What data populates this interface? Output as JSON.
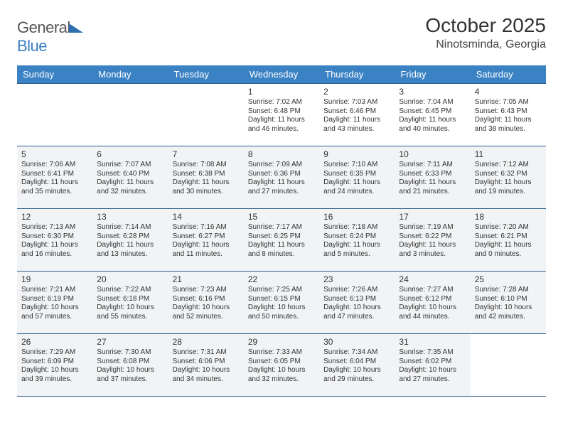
{
  "brand": {
    "part1": "General",
    "part2": "Blue"
  },
  "title": "October 2025",
  "location": "Ninotsminda, Georgia",
  "colors": {
    "header_bg": "#3b82c4",
    "border": "#2f5f8f",
    "shaded_bg": "#f1f3f5",
    "text": "#333333",
    "brand_gray": "#555555",
    "brand_blue": "#3b7fc4"
  },
  "day_headers": [
    "Sunday",
    "Monday",
    "Tuesday",
    "Wednesday",
    "Thursday",
    "Friday",
    "Saturday"
  ],
  "weeks": [
    [
      {
        "day": "",
        "sunrise": "",
        "sunset": "",
        "daylight": "",
        "shaded": false
      },
      {
        "day": "",
        "sunrise": "",
        "sunset": "",
        "daylight": "",
        "shaded": false
      },
      {
        "day": "",
        "sunrise": "",
        "sunset": "",
        "daylight": "",
        "shaded": false
      },
      {
        "day": "1",
        "sunrise": "Sunrise: 7:02 AM",
        "sunset": "Sunset: 6:48 PM",
        "daylight": "Daylight: 11 hours and 46 minutes.",
        "shaded": false
      },
      {
        "day": "2",
        "sunrise": "Sunrise: 7:03 AM",
        "sunset": "Sunset: 6:46 PM",
        "daylight": "Daylight: 11 hours and 43 minutes.",
        "shaded": false
      },
      {
        "day": "3",
        "sunrise": "Sunrise: 7:04 AM",
        "sunset": "Sunset: 6:45 PM",
        "daylight": "Daylight: 11 hours and 40 minutes.",
        "shaded": false
      },
      {
        "day": "4",
        "sunrise": "Sunrise: 7:05 AM",
        "sunset": "Sunset: 6:43 PM",
        "daylight": "Daylight: 11 hours and 38 minutes.",
        "shaded": false
      }
    ],
    [
      {
        "day": "5",
        "sunrise": "Sunrise: 7:06 AM",
        "sunset": "Sunset: 6:41 PM",
        "daylight": "Daylight: 11 hours and 35 minutes.",
        "shaded": true
      },
      {
        "day": "6",
        "sunrise": "Sunrise: 7:07 AM",
        "sunset": "Sunset: 6:40 PM",
        "daylight": "Daylight: 11 hours and 32 minutes.",
        "shaded": true
      },
      {
        "day": "7",
        "sunrise": "Sunrise: 7:08 AM",
        "sunset": "Sunset: 6:38 PM",
        "daylight": "Daylight: 11 hours and 30 minutes.",
        "shaded": true
      },
      {
        "day": "8",
        "sunrise": "Sunrise: 7:09 AM",
        "sunset": "Sunset: 6:36 PM",
        "daylight": "Daylight: 11 hours and 27 minutes.",
        "shaded": true
      },
      {
        "day": "9",
        "sunrise": "Sunrise: 7:10 AM",
        "sunset": "Sunset: 6:35 PM",
        "daylight": "Daylight: 11 hours and 24 minutes.",
        "shaded": true
      },
      {
        "day": "10",
        "sunrise": "Sunrise: 7:11 AM",
        "sunset": "Sunset: 6:33 PM",
        "daylight": "Daylight: 11 hours and 21 minutes.",
        "shaded": true
      },
      {
        "day": "11",
        "sunrise": "Sunrise: 7:12 AM",
        "sunset": "Sunset: 6:32 PM",
        "daylight": "Daylight: 11 hours and 19 minutes.",
        "shaded": true
      }
    ],
    [
      {
        "day": "12",
        "sunrise": "Sunrise: 7:13 AM",
        "sunset": "Sunset: 6:30 PM",
        "daylight": "Daylight: 11 hours and 16 minutes.",
        "shaded": true
      },
      {
        "day": "13",
        "sunrise": "Sunrise: 7:14 AM",
        "sunset": "Sunset: 6:28 PM",
        "daylight": "Daylight: 11 hours and 13 minutes.",
        "shaded": true
      },
      {
        "day": "14",
        "sunrise": "Sunrise: 7:16 AM",
        "sunset": "Sunset: 6:27 PM",
        "daylight": "Daylight: 11 hours and 11 minutes.",
        "shaded": true
      },
      {
        "day": "15",
        "sunrise": "Sunrise: 7:17 AM",
        "sunset": "Sunset: 6:25 PM",
        "daylight": "Daylight: 11 hours and 8 minutes.",
        "shaded": true
      },
      {
        "day": "16",
        "sunrise": "Sunrise: 7:18 AM",
        "sunset": "Sunset: 6:24 PM",
        "daylight": "Daylight: 11 hours and 5 minutes.",
        "shaded": true
      },
      {
        "day": "17",
        "sunrise": "Sunrise: 7:19 AM",
        "sunset": "Sunset: 6:22 PM",
        "daylight": "Daylight: 11 hours and 3 minutes.",
        "shaded": true
      },
      {
        "day": "18",
        "sunrise": "Sunrise: 7:20 AM",
        "sunset": "Sunset: 6:21 PM",
        "daylight": "Daylight: 11 hours and 0 minutes.",
        "shaded": true
      }
    ],
    [
      {
        "day": "19",
        "sunrise": "Sunrise: 7:21 AM",
        "sunset": "Sunset: 6:19 PM",
        "daylight": "Daylight: 10 hours and 57 minutes.",
        "shaded": true
      },
      {
        "day": "20",
        "sunrise": "Sunrise: 7:22 AM",
        "sunset": "Sunset: 6:18 PM",
        "daylight": "Daylight: 10 hours and 55 minutes.",
        "shaded": true
      },
      {
        "day": "21",
        "sunrise": "Sunrise: 7:23 AM",
        "sunset": "Sunset: 6:16 PM",
        "daylight": "Daylight: 10 hours and 52 minutes.",
        "shaded": true
      },
      {
        "day": "22",
        "sunrise": "Sunrise: 7:25 AM",
        "sunset": "Sunset: 6:15 PM",
        "daylight": "Daylight: 10 hours and 50 minutes.",
        "shaded": true
      },
      {
        "day": "23",
        "sunrise": "Sunrise: 7:26 AM",
        "sunset": "Sunset: 6:13 PM",
        "daylight": "Daylight: 10 hours and 47 minutes.",
        "shaded": true
      },
      {
        "day": "24",
        "sunrise": "Sunrise: 7:27 AM",
        "sunset": "Sunset: 6:12 PM",
        "daylight": "Daylight: 10 hours and 44 minutes.",
        "shaded": true
      },
      {
        "day": "25",
        "sunrise": "Sunrise: 7:28 AM",
        "sunset": "Sunset: 6:10 PM",
        "daylight": "Daylight: 10 hours and 42 minutes.",
        "shaded": true
      }
    ],
    [
      {
        "day": "26",
        "sunrise": "Sunrise: 7:29 AM",
        "sunset": "Sunset: 6:09 PM",
        "daylight": "Daylight: 10 hours and 39 minutes.",
        "shaded": true
      },
      {
        "day": "27",
        "sunrise": "Sunrise: 7:30 AM",
        "sunset": "Sunset: 6:08 PM",
        "daylight": "Daylight: 10 hours and 37 minutes.",
        "shaded": true
      },
      {
        "day": "28",
        "sunrise": "Sunrise: 7:31 AM",
        "sunset": "Sunset: 6:06 PM",
        "daylight": "Daylight: 10 hours and 34 minutes.",
        "shaded": true
      },
      {
        "day": "29",
        "sunrise": "Sunrise: 7:33 AM",
        "sunset": "Sunset: 6:05 PM",
        "daylight": "Daylight: 10 hours and 32 minutes.",
        "shaded": true
      },
      {
        "day": "30",
        "sunrise": "Sunrise: 7:34 AM",
        "sunset": "Sunset: 6:04 PM",
        "daylight": "Daylight: 10 hours and 29 minutes.",
        "shaded": true
      },
      {
        "day": "31",
        "sunrise": "Sunrise: 7:35 AM",
        "sunset": "Sunset: 6:02 PM",
        "daylight": "Daylight: 10 hours and 27 minutes.",
        "shaded": true
      },
      {
        "day": "",
        "sunrise": "",
        "sunset": "",
        "daylight": "",
        "shaded": false
      }
    ]
  ]
}
